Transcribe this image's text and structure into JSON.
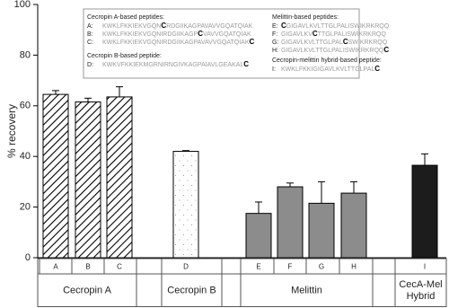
{
  "chart_data": {
    "type": "bar",
    "y_label": "% recovery",
    "categories": [
      "A",
      "B",
      "C",
      "D",
      "E",
      "F",
      "G",
      "H",
      "I"
    ],
    "values": [
      64.5,
      61.5,
      63.5,
      42,
      17.5,
      28,
      21.5,
      25.5,
      36.5
    ],
    "errors": [
      1.5,
      1.5,
      4,
      0.3,
      4.5,
      1.5,
      8.5,
      4.5,
      4.5
    ],
    "colors": [
      "#ffffff",
      "#ffffff",
      "#ffffff",
      "#ffffff",
      "#8c8c8c",
      "#8c8c8c",
      "#8c8c8c",
      "#8c8c8c",
      "#1c1c1c"
    ],
    "fills": [
      "hatch",
      "hatch",
      "hatch",
      "dots",
      "solid",
      "solid",
      "solid",
      "solid",
      "solid"
    ],
    "groups": [
      [
        "Cecropin A"
      ],
      [
        "Cecropin B"
      ],
      [
        "Melittin"
      ],
      [
        "CecA-Mel",
        "Hybrid"
      ]
    ],
    "ylim": [
      0,
      100
    ],
    "yticks": [
      0,
      20,
      40,
      60,
      80,
      100
    ],
    "annotation_box": {
      "left": [
        {
          "header": "Cecropin A-based peptides:"
        },
        {
          "label": "A:",
          "seq": [
            "KWKLFKKIEKVGQN",
            "C",
            "RDGIIKAGPAVAVVGQATQIAK"
          ]
        },
        {
          "label": "B:",
          "seq": [
            "KWKLFKKIEKVGQNIRDGIIKAGP",
            "C",
            "VAVVGQATQIAK"
          ]
        },
        {
          "label": "C:",
          "seq": [
            "KWKLFKKIEKVGQNIRDGIIKAGPAVAVVGQATQIAK",
            "C"
          ]
        },
        {
          "header": "Cecropin B-based peptide:"
        },
        {
          "label": "D:",
          "seq": [
            "KWKVFKKIEKMGRNIRNGIVKAGPAIAVLGEAKAL",
            "C"
          ]
        }
      ],
      "right": [
        {
          "header": "Melittin-based peptides:"
        },
        {
          "label": "E:",
          "seq": [
            "C",
            "GIGAVLKVLTTGLPALISWIKRKRQQ"
          ]
        },
        {
          "label": "F:",
          "seq": [
            "GIGAVLKV",
            "C",
            "TTGLPALISWIKRKRQQ"
          ]
        },
        {
          "label": "G:",
          "seq": [
            "GIGAVLKVLTTGLPAL",
            "C",
            "SWIKRKRQQ"
          ]
        },
        {
          "label": "H:",
          "seq": [
            "GIGAVLKVLTTGLPALISWIKRKRQQ",
            "C"
          ]
        },
        {
          "header": "Cecropin-melittin hybrid-based peptide:"
        },
        {
          "label": "I:",
          "seq": [
            "KWKLFKKIGIGAVLKVLTTGLPAL",
            "C"
          ]
        }
      ]
    }
  }
}
